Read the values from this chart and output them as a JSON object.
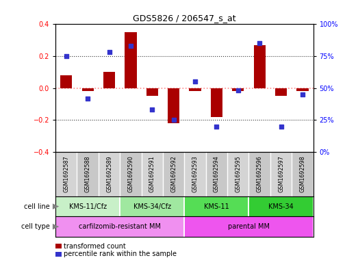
{
  "title": "GDS5826 / 206547_s_at",
  "samples": [
    "GSM1692587",
    "GSM1692588",
    "GSM1692589",
    "GSM1692590",
    "GSM1692591",
    "GSM1692592",
    "GSM1692593",
    "GSM1692594",
    "GSM1692595",
    "GSM1692596",
    "GSM1692597",
    "GSM1692598"
  ],
  "transformed_count": [
    0.08,
    -0.02,
    0.1,
    0.35,
    -0.05,
    -0.22,
    -0.02,
    -0.18,
    -0.02,
    0.27,
    -0.05,
    -0.02
  ],
  "percentile_rank": [
    75,
    42,
    78,
    83,
    33,
    25,
    55,
    20,
    48,
    85,
    20,
    45
  ],
  "ylim_left": [
    -0.4,
    0.4
  ],
  "ylim_right": [
    0,
    100
  ],
  "yticks_left": [
    -0.4,
    -0.2,
    0.0,
    0.2,
    0.4
  ],
  "yticks_right": [
    0,
    25,
    50,
    75,
    100
  ],
  "cell_line_groups": [
    {
      "label": "KMS-11/Cfz",
      "start": 0,
      "end": 3,
      "color": "#c8f0c8"
    },
    {
      "label": "KMS-34/Cfz",
      "start": 3,
      "end": 6,
      "color": "#a0e8a0"
    },
    {
      "label": "KMS-11",
      "start": 6,
      "end": 9,
      "color": "#55dd55"
    },
    {
      "label": "KMS-34",
      "start": 9,
      "end": 12,
      "color": "#33cc33"
    }
  ],
  "cell_type_groups": [
    {
      "label": "carfilzomib-resistant MM",
      "start": 0,
      "end": 6,
      "color": "#f090f0"
    },
    {
      "label": "parental MM",
      "start": 6,
      "end": 12,
      "color": "#ee55ee"
    }
  ],
  "bar_color": "#aa0000",
  "dot_color": "#3333cc",
  "zero_line_color": "#ff8888",
  "dotted_line_color": "#333333",
  "label_bg_even": "#d4d4d4",
  "label_bg_odd": "#c8c8c8",
  "label_divider_color": "#ffffff"
}
